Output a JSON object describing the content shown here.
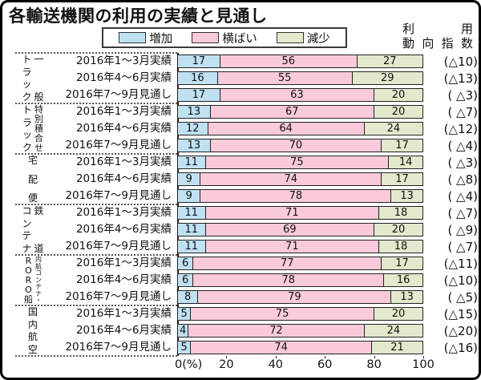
{
  "title": "各輸送機関の利用の実績と見通し",
  "legend": [
    {
      "label": "増加",
      "color": "#c0e1f2"
    },
    {
      "label": "横ばい",
      "color": "#f9cada"
    },
    {
      "label": "減少",
      "color": "#e2e9cc"
    }
  ],
  "index_header": {
    "line1": "利　用",
    "line2": "動向指数"
  },
  "axis": {
    "ticks": [
      "0(%)",
      "20",
      "40",
      "60",
      "80",
      "100"
    ]
  },
  "chart_data": {
    "type": "bar",
    "orientation": "horizontal",
    "stacked": true,
    "unit": "%",
    "xlim": [
      0,
      100
    ],
    "series_labels": [
      "増加",
      "横ばい",
      "減少"
    ],
    "groups": [
      {
        "name": "一般トラック",
        "name_lines": [
          "一般",
          "トラック"
        ],
        "rows": [
          {
            "label": "2016年1～3月実績",
            "values": [
              17,
              56,
              27
            ],
            "index": "(△10)"
          },
          {
            "label": "2016年4～6月実績",
            "values": [
              16,
              55,
              29
            ],
            "index": "(△13)"
          },
          {
            "label": "2016年7～9月見通し",
            "values": [
              17,
              63,
              20
            ],
            "index": "( △3)"
          }
        ]
      },
      {
        "name": "特別積合せトラック",
        "name_lines": [
          "特別積合せ",
          "トラック"
        ],
        "rows": [
          {
            "label": "2016年1～3月実績",
            "values": [
              13,
              67,
              20
            ],
            "index": "( △7)"
          },
          {
            "label": "2016年4～6月実績",
            "values": [
              12,
              64,
              24
            ],
            "index": "(△12)"
          },
          {
            "label": "2016年7～9月見通し",
            "values": [
              13,
              70,
              17
            ],
            "index": "( △4)"
          }
        ]
      },
      {
        "name": "宅配便",
        "name_lines": [
          "宅配便"
        ],
        "rows": [
          {
            "label": "2016年1～3月実績",
            "values": [
              11,
              75,
              14
            ],
            "index": "( △3)"
          },
          {
            "label": "2016年4～6月実績",
            "values": [
              9,
              74,
              17
            ],
            "index": "( △8)"
          },
          {
            "label": "2016年7～9月見通し",
            "values": [
              9,
              78,
              13
            ],
            "index": "( △4)"
          }
        ]
      },
      {
        "name": "鉄道コンテナ",
        "name_lines": [
          "鉄道",
          "コンテナ"
        ],
        "rows": [
          {
            "label": "2016年1～3月実績",
            "values": [
              11,
              71,
              18
            ],
            "index": "( △7)"
          },
          {
            "label": "2016年4～6月実績",
            "values": [
              11,
              69,
              20
            ],
            "index": "( △9)"
          },
          {
            "label": "2016年7～9月見通し",
            "values": [
              11,
              71,
              18
            ],
            "index": "( △7)"
          }
        ]
      },
      {
        "name": "内航コンテナ・RORO船",
        "name_lines": [
          "内航コンテナ・",
          "RORO船"
        ],
        "rows": [
          {
            "label": "2016年1～3月実績",
            "values": [
              6,
              77,
              17
            ],
            "index": "(△11)"
          },
          {
            "label": "2016年4～6月実績",
            "values": [
              6,
              78,
              16
            ],
            "index": "(△10)"
          },
          {
            "label": "2016年7～9月見通し",
            "values": [
              8,
              79,
              13
            ],
            "index": "( △5)"
          }
        ]
      },
      {
        "name": "国内航空",
        "name_lines": [
          "国内航空"
        ],
        "rows": [
          {
            "label": "2016年1～3月実績",
            "values": [
              5,
              75,
              20
            ],
            "index": "(△15)"
          },
          {
            "label": "2016年4～6月実績",
            "values": [
              4,
              72,
              24
            ],
            "index": "(△20)"
          },
          {
            "label": "2016年7～9月見通し",
            "values": [
              5,
              74,
              21
            ],
            "index": "(△16)"
          }
        ]
      }
    ]
  }
}
